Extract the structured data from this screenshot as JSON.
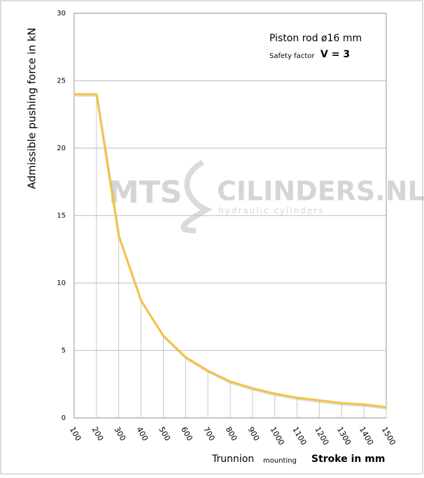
{
  "chart_data": {
    "type": "line",
    "annotations": [
      "Piston rod ø16 mm",
      "Safety factor",
      "V = 3"
    ],
    "watermark": [
      "MTS",
      "CILINDERS.NL",
      "hydraulic   cylinders"
    ],
    "y_label": "Admissible pushing  force in kN",
    "x_label": [
      "Trunnion",
      "mounting",
      "Stroke in mm"
    ],
    "x": [
      100,
      200,
      300,
      400,
      500,
      600,
      700,
      800,
      900,
      1000,
      1100,
      1200,
      1300,
      1400,
      1500
    ],
    "series": [
      {
        "name": "Piston rod ø16 mm",
        "color": "#f5c242",
        "values": [
          24,
          24,
          13.5,
          8.7,
          6.1,
          4.5,
          3.5,
          2.7,
          2.2,
          1.8,
          1.5,
          1.3,
          1.1,
          1.0,
          0.8
        ]
      }
    ],
    "xlim": [
      100,
      1500
    ],
    "xticks": [
      100,
      200,
      300,
      400,
      500,
      600,
      700,
      800,
      900,
      1000,
      1100,
      1200,
      1300,
      1400,
      1500
    ],
    "ylim": [
      0,
      30
    ],
    "yticks": [
      0,
      5,
      10,
      15,
      20,
      25,
      30
    ],
    "grid": true
  }
}
